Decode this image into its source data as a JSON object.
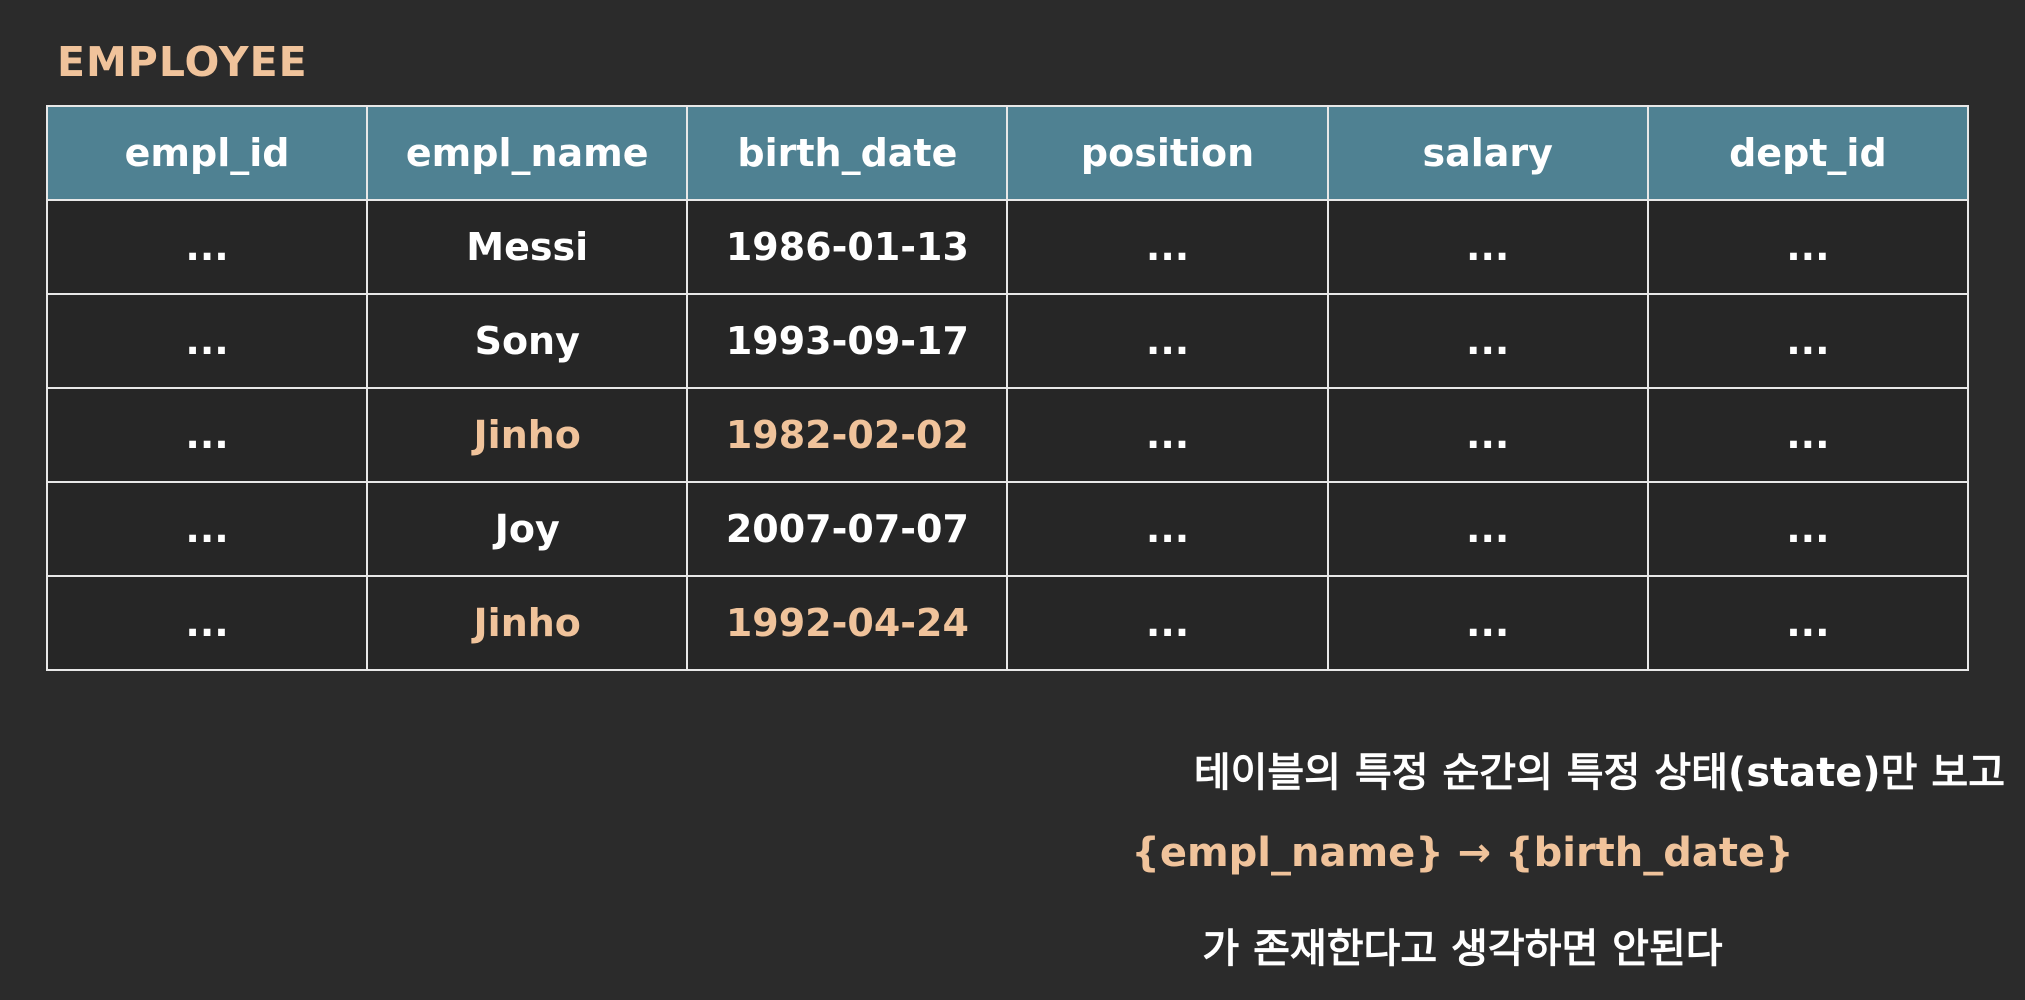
{
  "table_title": "EMPLOYEE",
  "columns": [
    "empl_id",
    "empl_name",
    "birth_date",
    "position",
    "salary",
    "dept_id"
  ],
  "rows": [
    {
      "empl_id": "...",
      "empl_name": "Messi",
      "birth_date": "1986-01-13",
      "position": "...",
      "salary": "...",
      "dept_id": "...",
      "highlighted": false
    },
    {
      "empl_id": "...",
      "empl_name": "Sony",
      "birth_date": "1993-09-17",
      "position": "...",
      "salary": "...",
      "dept_id": "...",
      "highlighted": false
    },
    {
      "empl_id": "...",
      "empl_name": "Jinho",
      "birth_date": "1982-02-02",
      "position": "...",
      "salary": "...",
      "dept_id": "...",
      "highlighted": true
    },
    {
      "empl_id": "...",
      "empl_name": "Joy",
      "birth_date": "2007-07-07",
      "position": "...",
      "salary": "...",
      "dept_id": "...",
      "highlighted": false
    },
    {
      "empl_id": "...",
      "empl_name": "Jinho",
      "birth_date": "1992-04-24",
      "position": "...",
      "salary": "...",
      "dept_id": "...",
      "highlighted": true
    }
  ],
  "caption": {
    "line1": "테이블의 특정 순간의 특정 상태(state)만 보고",
    "line2": "{empl_name} → {birth_date}",
    "line3": "가 존재한다고 생각하면 안된다"
  },
  "colors": {
    "background": "#2b2b2b",
    "header": "#4f8192",
    "highlight": "#f0c39b",
    "text": "#ffffff",
    "border": "#e8e8e8"
  }
}
